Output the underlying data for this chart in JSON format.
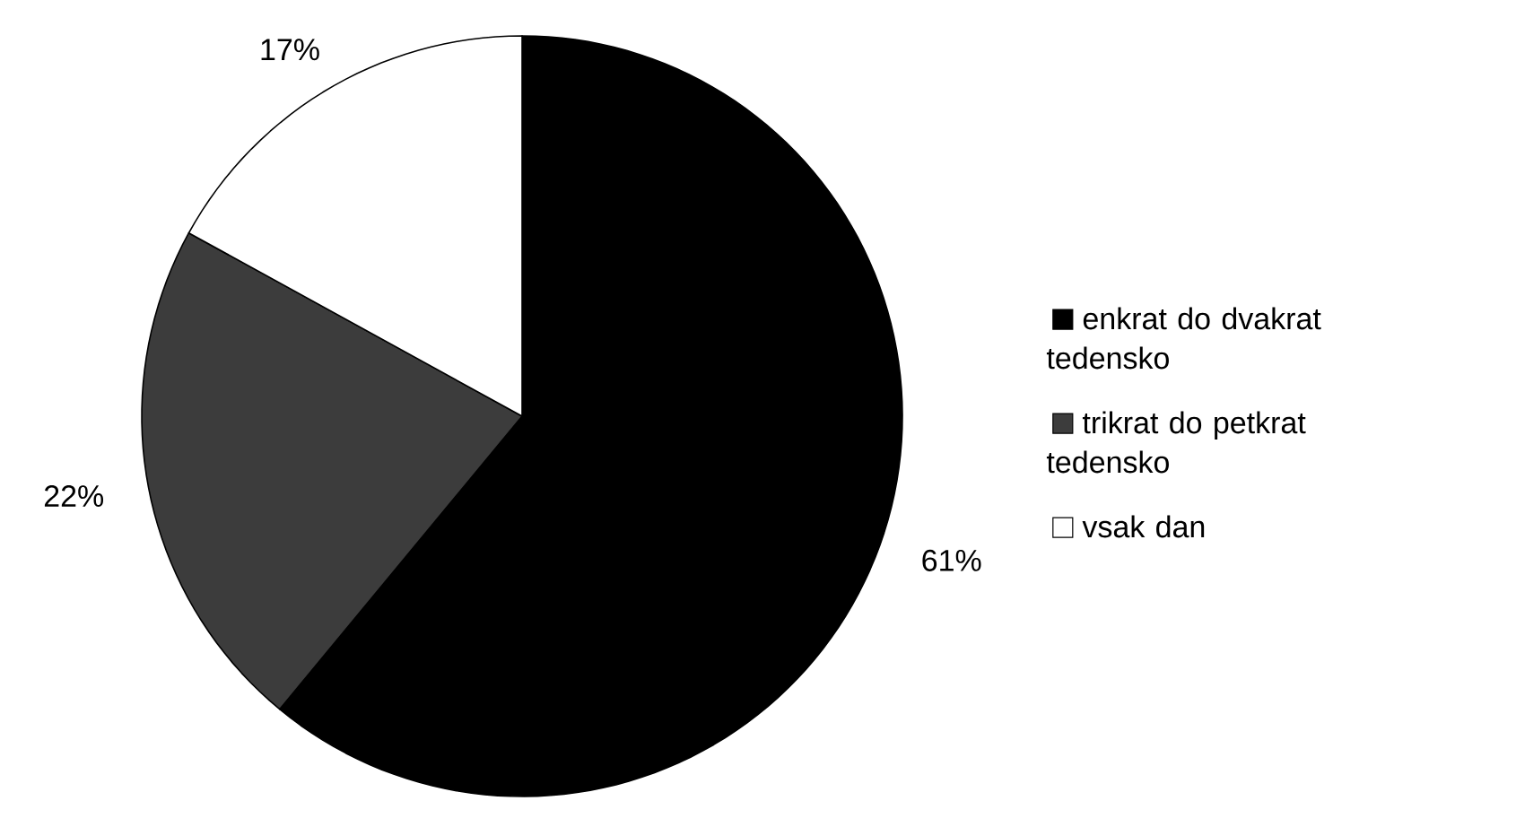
{
  "chart_data": {
    "type": "pie",
    "categories": [
      "enkrat do dvakrat tedensko",
      "trikrat do petkrat tedensko",
      "vsak dan"
    ],
    "values": [
      61,
      22,
      17
    ],
    "colors": [
      "#000000",
      "#3c3c3c",
      "#ffffff"
    ],
    "value_labels": [
      "61%",
      "22%",
      "17%"
    ],
    "legend": "right"
  }
}
